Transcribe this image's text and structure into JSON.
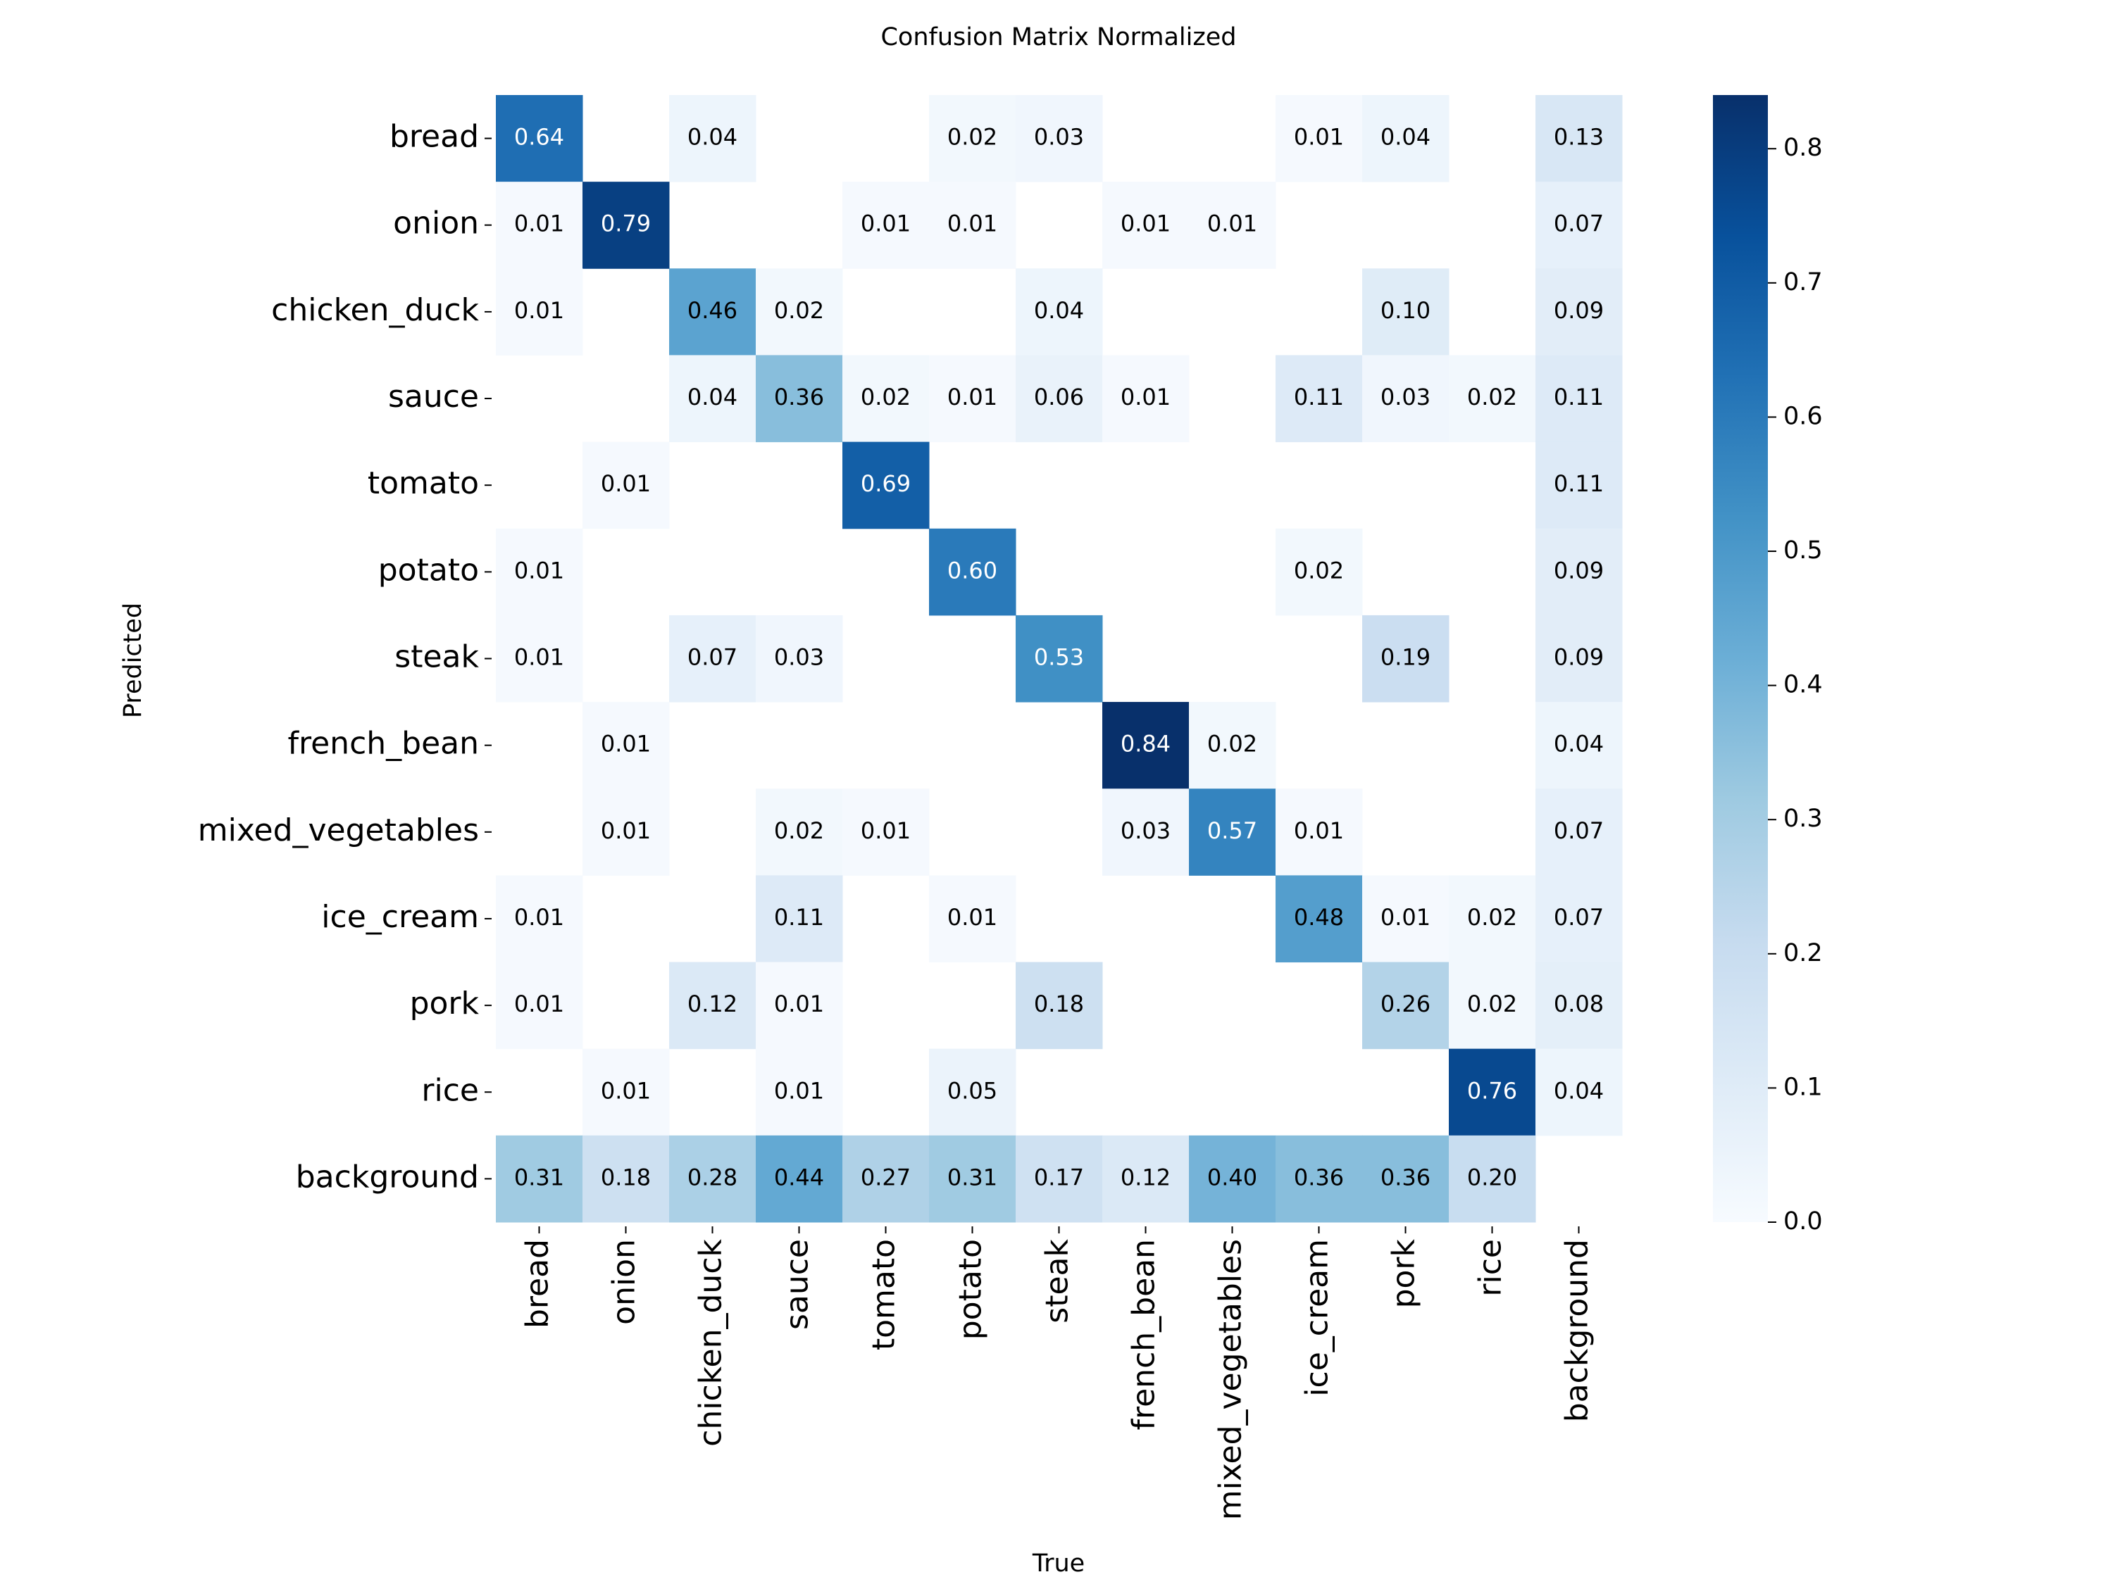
{
  "chart_data": {
    "type": "heatmap",
    "title": "Confusion Matrix Normalized",
    "x_label": "True",
    "y_label": "Predicted",
    "colormap": "Blues",
    "x_categories": [
      "bread",
      "onion",
      "chicken_duck",
      "sauce",
      "tomato",
      "potato",
      "steak",
      "french_bean",
      "mixed_vegetables",
      "ice_cream",
      "pork",
      "rice",
      "background"
    ],
    "y_categories": [
      "bread",
      "onion",
      "chicken_duck",
      "sauce",
      "tomato",
      "potato",
      "steak",
      "french_bean",
      "mixed_vegetables",
      "ice_cream",
      "pork",
      "rice",
      "background"
    ],
    "values": [
      [
        0.64,
        null,
        0.04,
        null,
        null,
        0.02,
        0.03,
        null,
        null,
        0.01,
        0.04,
        null,
        0.13
      ],
      [
        0.01,
        0.79,
        null,
        null,
        0.01,
        0.01,
        null,
        0.01,
        0.01,
        null,
        null,
        null,
        0.07
      ],
      [
        0.01,
        null,
        0.46,
        0.02,
        null,
        null,
        0.04,
        null,
        null,
        null,
        0.1,
        null,
        0.09
      ],
      [
        null,
        null,
        0.04,
        0.36,
        0.02,
        0.01,
        0.06,
        0.01,
        null,
        0.11,
        0.03,
        0.02,
        0.11
      ],
      [
        null,
        0.01,
        null,
        null,
        0.69,
        null,
        null,
        null,
        null,
        null,
        null,
        null,
        0.11
      ],
      [
        0.01,
        null,
        null,
        null,
        null,
        0.6,
        null,
        null,
        null,
        0.02,
        null,
        null,
        0.09
      ],
      [
        0.01,
        null,
        0.07,
        0.03,
        null,
        null,
        0.53,
        null,
        null,
        null,
        0.19,
        null,
        0.09
      ],
      [
        null,
        0.01,
        null,
        null,
        null,
        null,
        null,
        0.84,
        0.02,
        null,
        null,
        null,
        0.04
      ],
      [
        null,
        0.01,
        null,
        0.02,
        0.01,
        null,
        null,
        0.03,
        0.57,
        0.01,
        null,
        null,
        0.07
      ],
      [
        0.01,
        null,
        null,
        0.11,
        null,
        0.01,
        null,
        null,
        null,
        0.48,
        0.01,
        0.02,
        0.07
      ],
      [
        0.01,
        null,
        0.12,
        0.01,
        null,
        null,
        0.18,
        null,
        null,
        null,
        0.26,
        0.02,
        0.08
      ],
      [
        null,
        0.01,
        null,
        0.01,
        null,
        0.05,
        null,
        null,
        null,
        null,
        null,
        0.76,
        0.04
      ],
      [
        0.31,
        0.18,
        0.28,
        0.44,
        0.27,
        0.31,
        0.17,
        0.12,
        0.4,
        0.36,
        0.36,
        0.2,
        null
      ]
    ],
    "value_labels": [
      [
        "0.64",
        null,
        "0.04",
        null,
        null,
        "0.02",
        "0.03",
        null,
        null,
        "0.01",
        "0.04",
        null,
        "0.13"
      ],
      [
        "0.01",
        "0.79",
        null,
        null,
        "0.01",
        "0.01",
        null,
        "0.01",
        "0.01",
        null,
        null,
        null,
        "0.07"
      ],
      [
        "0.01",
        null,
        "0.46",
        "0.02",
        null,
        null,
        "0.04",
        null,
        null,
        null,
        "0.10",
        null,
        "0.09"
      ],
      [
        null,
        null,
        "0.04",
        "0.36",
        "0.02",
        "0.01",
        "0.06",
        "0.01",
        null,
        "0.11",
        "0.03",
        "0.02",
        "0.11"
      ],
      [
        null,
        "0.01",
        null,
        null,
        "0.69",
        null,
        null,
        null,
        null,
        null,
        null,
        null,
        "0.11"
      ],
      [
        "0.01",
        null,
        null,
        null,
        null,
        "0.60",
        null,
        null,
        null,
        "0.02",
        null,
        null,
        "0.09"
      ],
      [
        "0.01",
        null,
        "0.07",
        "0.03",
        null,
        null,
        "0.53",
        null,
        null,
        null,
        "0.19",
        null,
        "0.09"
      ],
      [
        null,
        "0.01",
        null,
        null,
        null,
        null,
        null,
        "0.84",
        "0.02",
        null,
        null,
        null,
        "0.04"
      ],
      [
        null,
        "0.01",
        null,
        "0.02",
        "0.01",
        null,
        null,
        "0.03",
        "0.57",
        "0.01",
        null,
        null,
        "0.07"
      ],
      [
        "0.01",
        null,
        null,
        "0.11",
        null,
        "0.01",
        null,
        null,
        null,
        "0.48",
        "0.01",
        "0.02",
        "0.07"
      ],
      [
        "0.01",
        null,
        "0.12",
        "0.01",
        null,
        null,
        "0.18",
        null,
        null,
        null,
        "0.26",
        "0.02",
        "0.08"
      ],
      [
        null,
        "0.01",
        null,
        "0.01",
        null,
        "0.05",
        null,
        null,
        null,
        null,
        null,
        "0.76",
        "0.04"
      ],
      [
        "0.31",
        "0.18",
        "0.28",
        "0.44",
        "0.27",
        "0.31",
        "0.17",
        "0.12",
        "0.40",
        "0.36",
        "0.36",
        "0.20",
        null
      ]
    ],
    "colorbar_lim": [
      0,
      0.84
    ],
    "colorbar_ticks": [
      {
        "value": 0,
        "label": "0.0"
      },
      0.1,
      0.2,
      0.3,
      0.4,
      0.5,
      0.6,
      0.7,
      0.8
    ]
  }
}
